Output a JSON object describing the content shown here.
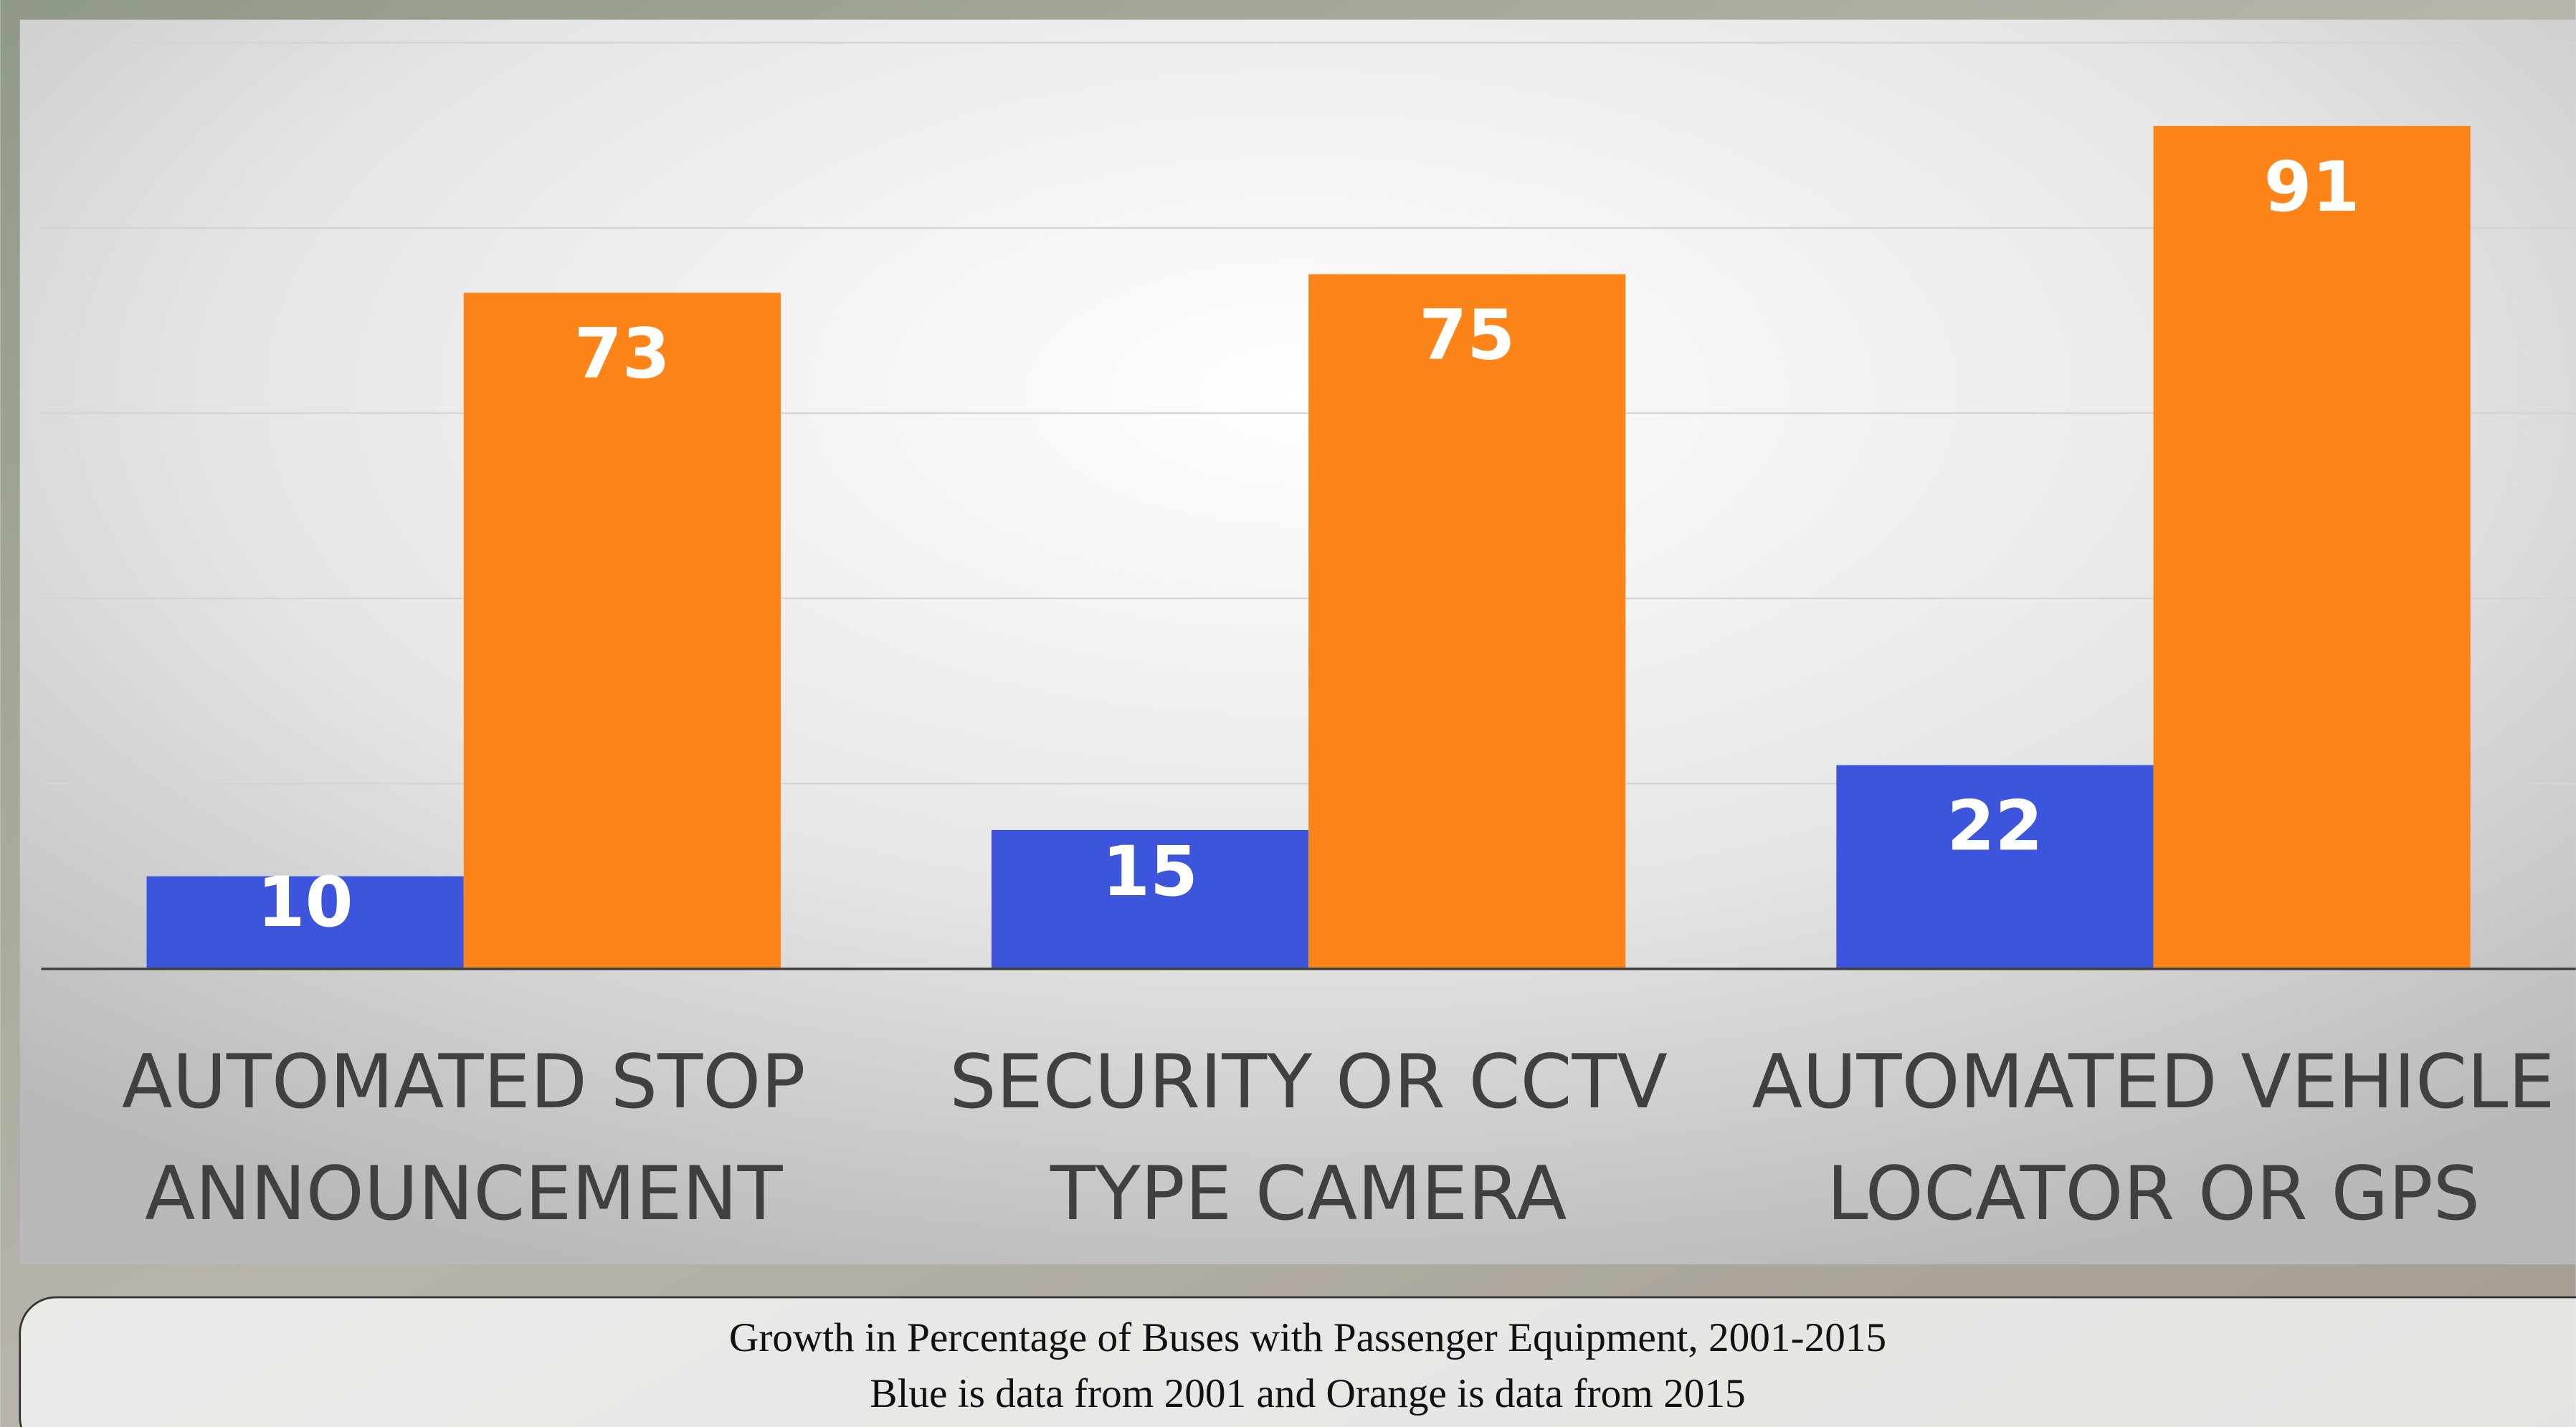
{
  "chart_data": {
    "type": "bar",
    "title": "Growth in Percentage of Buses with Passenger Equipment, 2001-2015",
    "subtitle": "Blue is data from 2001 and Orange is data from 2015",
    "categories": [
      [
        "AUTOMATED STOP",
        "ANNOUNCEMENT"
      ],
      [
        "SECURITY OR CCTV",
        "TYPE CAMERA"
      ],
      [
        "AUTOMATED VEHICLE",
        "LOCATOR OR GPS"
      ]
    ],
    "series": [
      {
        "color": "#3c55dc",
        "values": [
          10,
          15,
          22
        ]
      },
      {
        "color": "#fd8419",
        "values": [
          73,
          75,
          91
        ]
      }
    ],
    "ylim": [
      0,
      100
    ],
    "yticks": [
      0,
      20,
      40,
      60,
      80,
      100
    ],
    "grid": true
  }
}
